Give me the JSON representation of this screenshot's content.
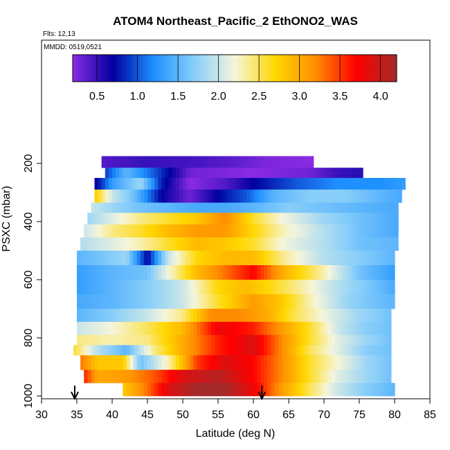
{
  "chart_data": {
    "type": "heatmap",
    "title": "ATOM4 Northeast_Pacific_2 EthONO2_WAS",
    "subtitle_lines": [
      "Flts: 12,13",
      "MMDD: 0519,0521"
    ],
    "xlabel": "Latitude (deg N)",
    "ylabel": "PSXC (mbar)",
    "xlim": [
      30,
      85
    ],
    "ylim": [
      1000,
      100
    ],
    "x_ticks": [
      "30",
      "35",
      "40",
      "45",
      "50",
      "55",
      "60",
      "65",
      "70",
      "75",
      "80",
      "85"
    ],
    "y_ticks": [
      "200",
      "400",
      "600",
      "800",
      "1000"
    ],
    "colorbar": {
      "range": [
        0.2,
        4.2
      ],
      "tick_values": [
        0.5,
        1.0,
        1.5,
        2.0,
        2.5,
        3.0,
        3.5,
        4.0
      ],
      "tick_labels": [
        "0.5",
        "1.0",
        "1.5",
        "2.0",
        "2.5",
        "3.0",
        "3.5",
        "4.0"
      ],
      "colors": [
        "#8a2be2",
        "#0000a0",
        "#1e90ff",
        "#87cefa",
        "#f5f5dc",
        "#ffd700",
        "#ff8c00",
        "#ff0000",
        "#a52a2a"
      ]
    },
    "bands": [
      {
        "p_top": 175,
        "p_bot": 215,
        "lat_min": 38.5,
        "lat_max": 68.5,
        "nodes": [
          [
            38.5,
            0.4
          ],
          [
            45,
            0.5
          ],
          [
            52,
            0.45
          ],
          [
            58,
            0.35
          ],
          [
            62,
            0.25
          ],
          [
            68.5,
            0.2
          ]
        ]
      },
      {
        "p_top": 215,
        "p_bot": 250,
        "lat_min": 39,
        "lat_max": 75.5,
        "nodes": [
          [
            39,
            0.9
          ],
          [
            42,
            1.5
          ],
          [
            46,
            1.0
          ],
          [
            51,
            0.3
          ],
          [
            60,
            0.2
          ],
          [
            68,
            0.3
          ],
          [
            72,
            0.5
          ],
          [
            75.5,
            0.55
          ]
        ]
      },
      {
        "p_top": 250,
        "p_bot": 290,
        "lat_min": 37.5,
        "lat_max": 81.5,
        "nodes": [
          [
            37.5,
            0.6
          ],
          [
            40,
            1.3
          ],
          [
            44,
            1.8
          ],
          [
            47,
            0.8
          ],
          [
            51,
            0.2
          ],
          [
            56,
            0.4
          ],
          [
            60,
            0.7
          ],
          [
            66,
            1.0
          ],
          [
            72,
            1.2
          ],
          [
            78,
            1.2
          ],
          [
            81.5,
            1.3
          ]
        ]
      },
      {
        "p_top": 290,
        "p_bot": 335,
        "lat_min": 37.5,
        "lat_max": 81,
        "nodes": [
          [
            37.5,
            2.8
          ],
          [
            40,
            2.0
          ],
          [
            43,
            1.6
          ],
          [
            47,
            0.7
          ],
          [
            51,
            0.3
          ],
          [
            55,
            0.7
          ],
          [
            59,
            1.0
          ],
          [
            63,
            1.5
          ],
          [
            68,
            1.7
          ],
          [
            73,
            1.7
          ],
          [
            78,
            1.5
          ],
          [
            81,
            1.4
          ]
        ]
      },
      {
        "p_top": 335,
        "p_bot": 370,
        "lat_min": 37,
        "lat_max": 80.5,
        "nodes": [
          [
            37,
            2.0
          ],
          [
            40,
            1.8
          ],
          [
            44,
            1.6
          ],
          [
            48,
            1.5
          ],
          [
            52,
            1.4
          ],
          [
            56,
            1.4
          ],
          [
            60,
            1.5
          ],
          [
            65,
            1.7
          ],
          [
            70,
            1.6
          ],
          [
            75,
            1.5
          ],
          [
            80.5,
            1.4
          ]
        ]
      },
      {
        "p_top": 370,
        "p_bot": 410,
        "lat_min": 36.5,
        "lat_max": 80.5,
        "nodes": [
          [
            36.5,
            1.8
          ],
          [
            40,
            2.1
          ],
          [
            44,
            2.4
          ],
          [
            48,
            2.6
          ],
          [
            52,
            2.8
          ],
          [
            56,
            3.2
          ],
          [
            60,
            2.6
          ],
          [
            64,
            2.2
          ],
          [
            70,
            1.8
          ],
          [
            75,
            1.6
          ],
          [
            80.5,
            1.4
          ]
        ]
      },
      {
        "p_top": 410,
        "p_bot": 455,
        "lat_min": 36,
        "lat_max": 80.5,
        "nodes": [
          [
            36,
            2.0
          ],
          [
            40,
            2.4
          ],
          [
            44,
            2.6
          ],
          [
            48,
            2.9
          ],
          [
            52,
            3.1
          ],
          [
            56,
            3.1
          ],
          [
            60,
            2.7
          ],
          [
            64,
            2.3
          ],
          [
            70,
            1.9
          ],
          [
            75,
            1.6
          ],
          [
            80.5,
            1.4
          ]
        ]
      },
      {
        "p_top": 455,
        "p_bot": 500,
        "lat_min": 35.5,
        "lat_max": 80.5,
        "nodes": [
          [
            35.5,
            1.9
          ],
          [
            40,
            2.1
          ],
          [
            44,
            2.3
          ],
          [
            48,
            2.6
          ],
          [
            52,
            2.9
          ],
          [
            56,
            2.8
          ],
          [
            60,
            2.6
          ],
          [
            64,
            2.2
          ],
          [
            70,
            1.9
          ],
          [
            75,
            1.6
          ],
          [
            80.5,
            1.5
          ]
        ]
      },
      {
        "p_top": 500,
        "p_bot": 550,
        "lat_min": 35,
        "lat_max": 80,
        "nodes": [
          [
            35,
            1.5
          ],
          [
            38,
            1.6
          ],
          [
            42,
            1.8
          ],
          [
            45,
            0.7
          ],
          [
            48,
            2.0
          ],
          [
            52,
            2.7
          ],
          [
            56,
            2.9
          ],
          [
            60,
            2.9
          ],
          [
            64,
            2.4
          ],
          [
            70,
            1.9
          ],
          [
            75,
            1.7
          ],
          [
            80,
            1.5
          ]
        ]
      },
      {
        "p_top": 550,
        "p_bot": 600,
        "lat_min": 35,
        "lat_max": 80,
        "nodes": [
          [
            35,
            1.3
          ],
          [
            40,
            1.5
          ],
          [
            45,
            1.6
          ],
          [
            48,
            2.2
          ],
          [
            52,
            2.9
          ],
          [
            56,
            3.3
          ],
          [
            60,
            3.7
          ],
          [
            64,
            3.0
          ],
          [
            70,
            2.3
          ],
          [
            75,
            1.6
          ],
          [
            80,
            1.3
          ]
        ]
      },
      {
        "p_top": 600,
        "p_bot": 650,
        "lat_min": 35,
        "lat_max": 80,
        "nodes": [
          [
            35,
            1.3
          ],
          [
            40,
            1.5
          ],
          [
            45,
            1.7
          ],
          [
            50,
            2.0
          ],
          [
            55,
            2.7
          ],
          [
            59,
            2.9
          ],
          [
            62,
            2.7
          ],
          [
            66,
            2.4
          ],
          [
            72,
            1.9
          ],
          [
            77,
            1.6
          ],
          [
            80,
            1.4
          ]
        ]
      },
      {
        "p_top": 650,
        "p_bot": 700,
        "lat_min": 35,
        "lat_max": 80,
        "nodes": [
          [
            35,
            1.4
          ],
          [
            40,
            1.5
          ],
          [
            45,
            1.7
          ],
          [
            50,
            2.0
          ],
          [
            55,
            2.6
          ],
          [
            60,
            3.1
          ],
          [
            64,
            2.8
          ],
          [
            68,
            2.3
          ],
          [
            73,
            1.8
          ],
          [
            77,
            1.6
          ],
          [
            80,
            1.5
          ]
        ]
      },
      {
        "p_top": 700,
        "p_bot": 745,
        "lat_min": 35,
        "lat_max": 79.5,
        "nodes": [
          [
            35,
            1.5
          ],
          [
            40,
            1.7
          ],
          [
            45,
            2.0
          ],
          [
            50,
            2.4
          ],
          [
            54,
            3.2
          ],
          [
            58,
            3.2
          ],
          [
            62,
            3.0
          ],
          [
            66,
            2.5
          ],
          [
            71,
            2.1
          ],
          [
            75,
            1.8
          ],
          [
            79.5,
            1.6
          ]
        ]
      },
      {
        "p_top": 745,
        "p_bot": 790,
        "lat_min": 35,
        "lat_max": 79.5,
        "nodes": [
          [
            35,
            2.0
          ],
          [
            40,
            2.2
          ],
          [
            45,
            2.5
          ],
          [
            50,
            2.9
          ],
          [
            55,
            3.8
          ],
          [
            60,
            3.6
          ],
          [
            64,
            3.1
          ],
          [
            68,
            2.6
          ],
          [
            72,
            2.0
          ],
          [
            76,
            1.7
          ],
          [
            79.5,
            1.6
          ]
        ]
      },
      {
        "p_top": 790,
        "p_bot": 825,
        "lat_min": 35,
        "lat_max": 79.5,
        "nodes": [
          [
            35,
            2.4
          ],
          [
            40,
            2.3
          ],
          [
            45,
            2.4
          ],
          [
            50,
            3.0
          ],
          [
            55,
            3.6
          ],
          [
            60,
            3.9
          ],
          [
            64,
            3.2
          ],
          [
            68,
            2.6
          ],
          [
            72,
            2.1
          ],
          [
            76,
            1.8
          ],
          [
            79.5,
            1.6
          ]
        ]
      },
      {
        "p_top": 825,
        "p_bot": 860,
        "lat_min": 34.5,
        "lat_max": 79.5,
        "nodes": [
          [
            34.5,
            2.6
          ],
          [
            38,
            1.9
          ],
          [
            42,
            1.5
          ],
          [
            46,
            2.4
          ],
          [
            50,
            3.0
          ],
          [
            55,
            3.6
          ],
          [
            60,
            3.9
          ],
          [
            64,
            3.2
          ],
          [
            68,
            2.5
          ],
          [
            72,
            2.1
          ],
          [
            76,
            1.7
          ],
          [
            79.5,
            1.6
          ]
        ]
      },
      {
        "p_top": 860,
        "p_bot": 910,
        "lat_min": 35.5,
        "lat_max": 79.5,
        "nodes": [
          [
            35.5,
            3.3
          ],
          [
            38,
            2.8
          ],
          [
            41.5,
            2.8
          ],
          [
            44,
            1.6
          ],
          [
            48,
            2.3
          ],
          [
            52,
            3.5
          ],
          [
            56,
            3.9
          ],
          [
            60,
            3.7
          ],
          [
            64,
            3.2
          ],
          [
            68,
            2.6
          ],
          [
            72,
            2.2
          ],
          [
            76,
            1.8
          ],
          [
            79.5,
            1.6
          ]
        ]
      },
      {
        "p_top": 910,
        "p_bot": 955,
        "lat_min": 36,
        "lat_max": 79.5,
        "nodes": [
          [
            36,
            3.6
          ],
          [
            38,
            3.0
          ],
          [
            42,
            3.1
          ],
          [
            46,
            3.4
          ],
          [
            50,
            3.9
          ],
          [
            55,
            4.1
          ],
          [
            60,
            3.7
          ],
          [
            64,
            3.2
          ],
          [
            68,
            2.6
          ],
          [
            72,
            2.1
          ],
          [
            76,
            1.8
          ],
          [
            79.5,
            1.6
          ]
        ]
      },
      {
        "p_top": 955,
        "p_bot": 1000,
        "lat_min": 41.5,
        "lat_max": 80,
        "nodes": [
          [
            41.5,
            2.8
          ],
          [
            45,
            3.3
          ],
          [
            48,
            3.9
          ],
          [
            52,
            4.2
          ],
          [
            56,
            4.2
          ],
          [
            60,
            3.8
          ],
          [
            64,
            3.1
          ],
          [
            68,
            2.5
          ],
          [
            72,
            2.0
          ],
          [
            76,
            1.7
          ],
          [
            80,
            1.5
          ]
        ]
      }
    ],
    "flight_lat_markers": [
      34.7,
      61.2
    ]
  }
}
